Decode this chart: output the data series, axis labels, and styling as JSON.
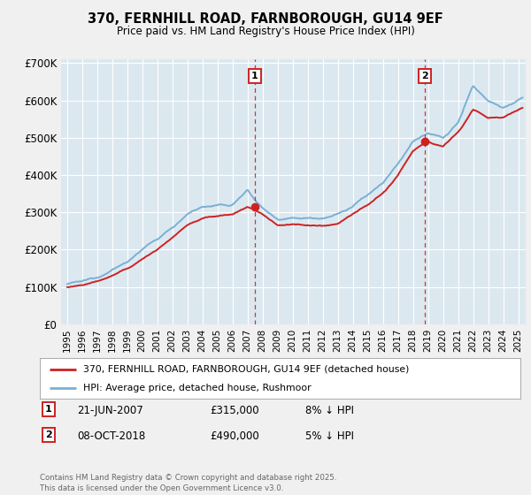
{
  "title": "370, FERNHILL ROAD, FARNBOROUGH, GU14 9EF",
  "subtitle": "Price paid vs. HM Land Registry's House Price Index (HPI)",
  "ylabel_ticks": [
    "£0",
    "£100K",
    "£200K",
    "£300K",
    "£400K",
    "£500K",
    "£600K",
    "£700K"
  ],
  "ytick_values": [
    0,
    100000,
    200000,
    300000,
    400000,
    500000,
    600000,
    700000
  ],
  "ylim": [
    0,
    710000
  ],
  "xlim_start": 1994.6,
  "xlim_end": 2025.5,
  "line_color_hpi": "#7ab0d4",
  "line_color_price": "#cc2222",
  "plot_bg_color": "#dce8f0",
  "background_color": "#f0f0f0",
  "outer_bg_color": "#f0f0f0",
  "grid_color": "#ffffff",
  "marker1_x": 2007.47,
  "marker1_y": 315000,
  "marker2_x": 2018.77,
  "marker2_y": 490000,
  "legend_label1": "370, FERNHILL ROAD, FARNBOROUGH, GU14 9EF (detached house)",
  "legend_label2": "HPI: Average price, detached house, Rushmoor",
  "footer": "Contains HM Land Registry data © Crown copyright and database right 2025.\nThis data is licensed under the Open Government Licence v3.0.",
  "xtick_years": [
    1995,
    1996,
    1997,
    1998,
    1999,
    2000,
    2001,
    2002,
    2003,
    2004,
    2005,
    2006,
    2007,
    2008,
    2009,
    2010,
    2011,
    2012,
    2013,
    2014,
    2015,
    2016,
    2017,
    2018,
    2019,
    2020,
    2021,
    2022,
    2023,
    2024,
    2025
  ],
  "hpi_years": [
    1995,
    1996,
    1997,
    1998,
    1999,
    2000,
    2001,
    2002,
    2003,
    2004,
    2005,
    2006,
    2007,
    2008,
    2009,
    2010,
    2011,
    2012,
    2013,
    2014,
    2015,
    2016,
    2017,
    2018,
    2019,
    2020,
    2021,
    2022,
    2023,
    2024,
    2025.3
  ],
  "hpi_values": [
    107000,
    115000,
    127000,
    145000,
    168000,
    200000,
    228000,
    260000,
    295000,
    315000,
    318000,
    320000,
    360000,
    310000,
    282000,
    285000,
    285000,
    285000,
    295000,
    315000,
    348000,
    378000,
    430000,
    490000,
    510000,
    500000,
    540000,
    640000,
    600000,
    580000,
    605000
  ],
  "price_years": [
    1995,
    1996,
    1997,
    1998,
    1999,
    2000,
    2001,
    2002,
    2003,
    2004,
    2005,
    2006,
    2007,
    2008,
    2009,
    2010,
    2011,
    2012,
    2013,
    2014,
    2015,
    2016,
    2017,
    2018,
    2019,
    2020,
    2021,
    2022,
    2023,
    2024,
    2025.3
  ],
  "price_values": [
    100000,
    105000,
    115000,
    130000,
    148000,
    175000,
    200000,
    233000,
    265000,
    285000,
    290000,
    295000,
    315000,
    295000,
    265000,
    268000,
    265000,
    262000,
    270000,
    295000,
    320000,
    350000,
    400000,
    465000,
    490000,
    475000,
    515000,
    575000,
    555000,
    555000,
    580000
  ]
}
